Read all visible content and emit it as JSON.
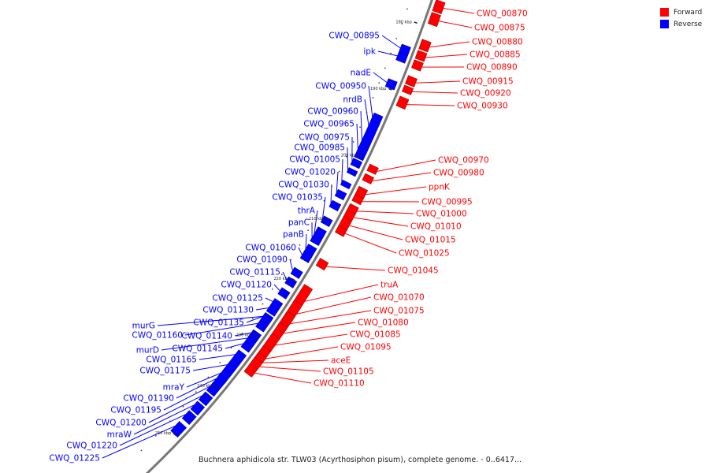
{
  "caption": "Buchnera aphidicola str. TLW03 (Acyrthosiphon pisum), complete genome. - 0..6417...",
  "legend": [
    {
      "label": "Forward",
      "color": "#ff0000"
    },
    {
      "label": "Reverse",
      "color": "#0000ff"
    }
  ],
  "colors": {
    "forward": "#ff0000",
    "reverse": "#0000ff",
    "backbone": "#777777"
  },
  "ticks": [
    "180 kbp",
    "190 kbp",
    "200 kbp",
    "210 kbp",
    "220 kbp",
    "230 kbp",
    "240 kbp",
    "250 kbp"
  ],
  "forward_labels": [
    "CWQ_00870",
    "CWQ_00875",
    "CWQ_00880",
    "CWQ_00885",
    "CWQ_00890",
    "CWQ_00915",
    "CWQ_00920",
    "CWQ_00930",
    "CWQ_00970",
    "CWQ_00980",
    "ppnK",
    "CWQ_00995",
    "CWQ_01000",
    "CWQ_01010",
    "CWQ_01015",
    "CWQ_01025",
    "CWQ_01045",
    "truA",
    "CWQ_01070",
    "CWQ_01075",
    "CWQ_01080",
    "CWQ_01085",
    "CWQ_01095",
    "aceE",
    "CWQ_01105",
    "CWQ_01110"
  ],
  "reverse_labels": [
    "CWQ_00895",
    "ipk",
    "nadE",
    "CWQ_00950",
    "nrdB",
    "CWQ_00960",
    "CWQ_00965",
    "CWQ_00975",
    "CWQ_00985",
    "CWQ_01005",
    "CWQ_01020",
    "CWQ_01030",
    "CWQ_01035",
    "thrA",
    "panC",
    "panB",
    "CWQ_01060",
    "CWQ_01090",
    "CWQ_01115",
    "CWQ_01120",
    "CWQ_01125",
    "CWQ_01130",
    "CWQ_01135",
    "murG",
    "CWQ_01160",
    "CWQ_01140",
    "murD",
    "CWQ_01145",
    "CWQ_01165",
    "CWQ_01175",
    "mraY",
    "CWQ_01190",
    "CWQ_01195",
    "CWQ_01200",
    "mraW",
    "CWQ_01220",
    "CWQ_01225"
  ]
}
